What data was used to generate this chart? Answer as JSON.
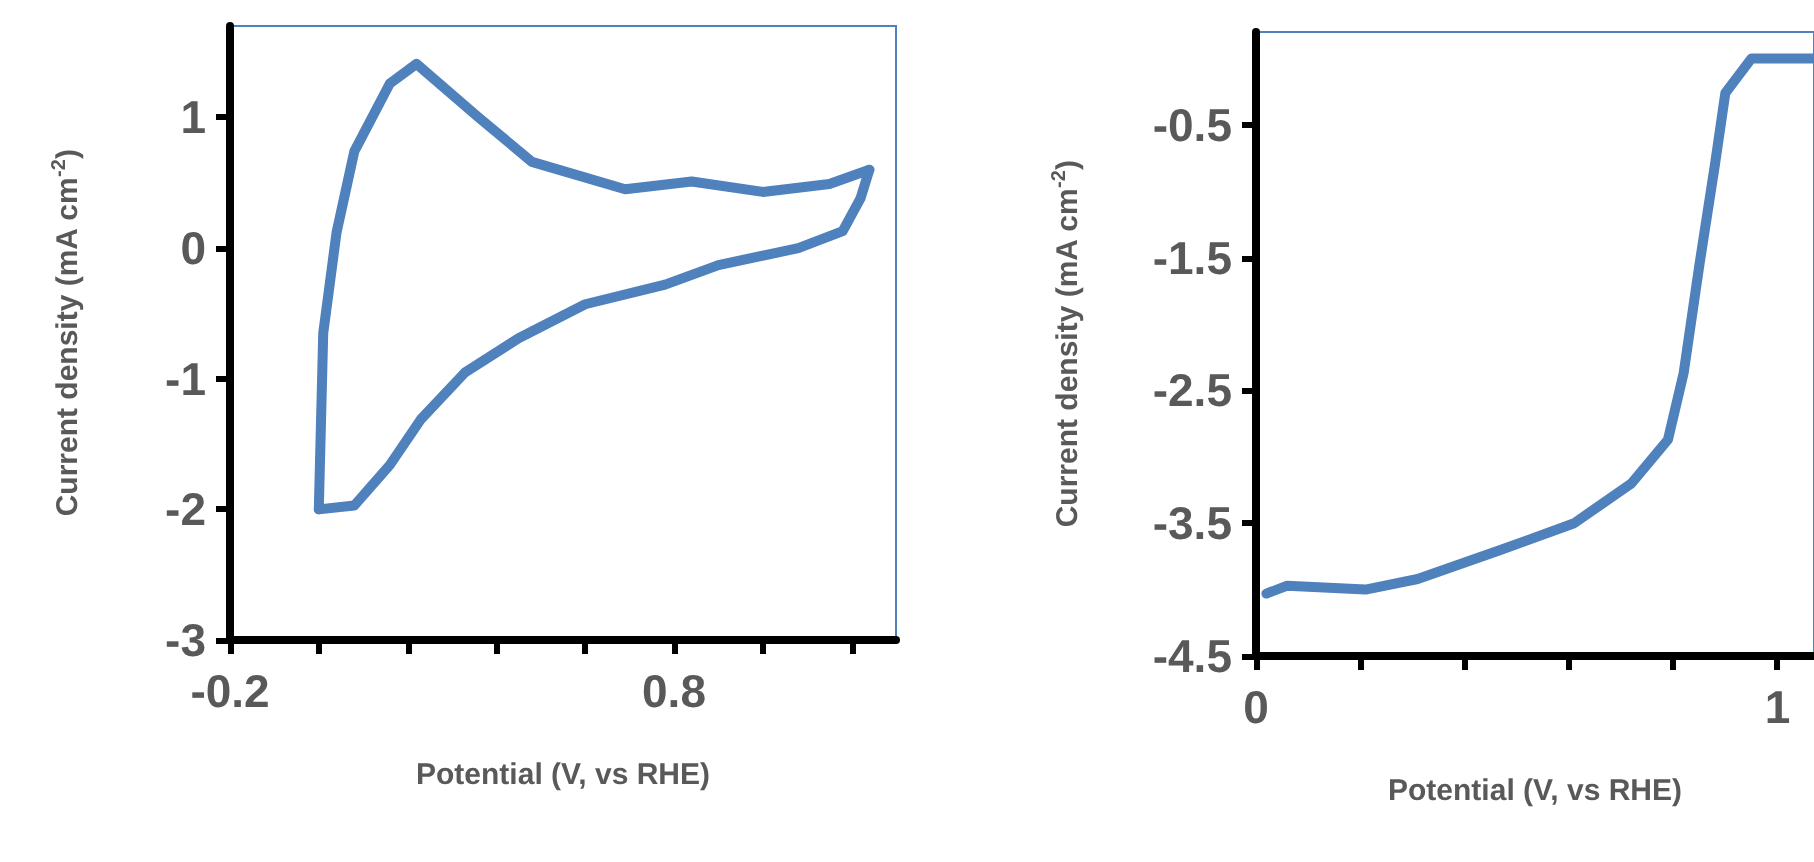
{
  "chart_data": [
    {
      "type": "line",
      "xlabel": "Potential (V, vs RHE)",
      "ylabel": "Current density (mA cm$^{-2}$)",
      "xlim": [
        -0.2,
        1.3
      ],
      "ylim": [
        -3,
        1.7
      ],
      "xticks": [
        -0.2,
        {
          "value": 0,
          "label": null
        },
        {
          "value": 0.2,
          "label": null
        },
        {
          "value": 0.4,
          "label": null
        },
        {
          "value": 0.6,
          "label": null
        },
        0.8,
        {
          "value": 1.0,
          "label": null
        },
        {
          "value": 1.2,
          "label": null
        }
      ],
      "yticks": [
        -3,
        -2,
        -1,
        0,
        1
      ],
      "series": [
        {
          "color": "#4f81bd",
          "x": [
            0.0,
            0.08,
            0.16,
            0.23,
            0.33,
            0.45,
            0.6,
            0.78,
            0.9,
            1.08,
            1.18,
            1.22,
            1.24
          ],
          "values": [
            -2.0,
            -1.97,
            -1.66,
            -1.31,
            -0.95,
            -0.69,
            -0.43,
            -0.28,
            -0.13,
            0.0,
            0.13,
            0.38,
            0.6
          ]
        },
        {
          "color": "#4f81bd",
          "x": [
            0.0,
            0.01,
            0.04,
            0.08,
            0.16,
            0.22,
            0.36,
            0.48,
            0.69,
            0.84,
            1.0,
            1.15,
            1.24
          ],
          "values": [
            -2.0,
            -0.65,
            0.12,
            0.74,
            1.26,
            1.41,
            1.0,
            0.66,
            0.45,
            0.51,
            0.43,
            0.49,
            0.6
          ]
        }
      ]
    },
    {
      "type": "line",
      "xlabel": "Potential (V, vs RHE)",
      "ylabel": "Current density (mA cm$^{-2}$)",
      "xlim": [
        0,
        1.07
      ],
      "ylim": [
        -4.5,
        0.2
      ],
      "xticks": [
        0,
        {
          "value": 0.2,
          "label": null
        },
        {
          "value": 0.4,
          "label": null
        },
        {
          "value": 0.6,
          "label": null
        },
        {
          "value": 0.8,
          "label": null
        },
        1
      ],
      "yticks": [
        -4.5,
        -3.5,
        -2.5,
        -1.5,
        -0.5
      ],
      "series": [
        {
          "color": "#4f81bd",
          "x": [
            0.02,
            0.06,
            0.21,
            0.31,
            0.47,
            0.61,
            0.72,
            0.79,
            0.82,
            0.85,
            0.88,
            0.9,
            0.95,
            1.07
          ],
          "values": [
            -4.03,
            -3.97,
            -4.0,
            -3.92,
            -3.7,
            -3.5,
            -3.2,
            -2.87,
            -2.37,
            -1.56,
            -0.8,
            -0.26,
            0.0,
            0.0
          ]
        }
      ]
    }
  ]
}
